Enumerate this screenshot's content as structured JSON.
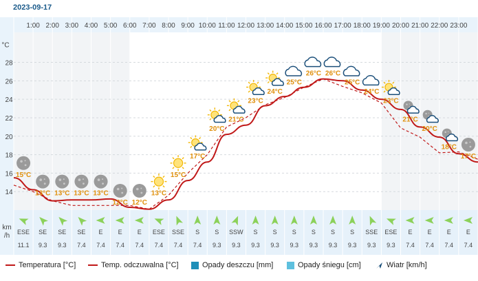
{
  "date": "2023-09-17",
  "units": {
    "temp_axis": "°C",
    "wind_axis_top": "km",
    "wind_axis_bottom": "/h"
  },
  "legend": {
    "temperature": "Temperatura [°C]",
    "feels_like": "Temp. odczuwalna [°C]",
    "rain": "Opady deszczu [mm]",
    "snow": "Opady śniegu [cm]",
    "wind": "Wiatr [km/h]"
  },
  "colors": {
    "temperature": "#c01818",
    "feels_like": "#c01818",
    "rain": "#1f8fb8",
    "snow": "#5ec0de",
    "wind_arrow": "#8cd15a",
    "temp_label": "#e0900c"
  },
  "chart_data": {
    "type": "line",
    "ylabel": "°C",
    "yticks": [
      14,
      16,
      18,
      20,
      22,
      24,
      26,
      28
    ],
    "ylim": [
      12,
      30.5
    ],
    "xticks": [
      "1:00",
      "2:00",
      "3:00",
      "4:00",
      "5:00",
      "6:00",
      "7:00",
      "8:00",
      "9:00",
      "10:00",
      "11:00",
      "12:00",
      "13:00",
      "14:00",
      "15:00",
      "16:00",
      "17:00",
      "18:00",
      "19:00",
      "20:00",
      "21:00",
      "22:00",
      "23:00"
    ],
    "hours": [
      0,
      1,
      2,
      3,
      4,
      5,
      6,
      7,
      8,
      9,
      10,
      11,
      12,
      13,
      14,
      15,
      16,
      17,
      18,
      19,
      20,
      21,
      22,
      23,
      24
    ],
    "series": [
      {
        "name": "Temperatura [°C]",
        "values": [
          15.5,
          14.2,
          13.0,
          13.1,
          13.1,
          13.2,
          12.3,
          12.1,
          13.1,
          15.2,
          17.2,
          20.2,
          21.2,
          23.3,
          24.3,
          25.3,
          26.2,
          26.0,
          25.0,
          24.0,
          22.9,
          21.0,
          19.9,
          18.1,
          17.2
        ]
      },
      {
        "name": "Temp. odczuwalna [°C]",
        "values": [
          14.7,
          14.0,
          13.0,
          12.5,
          12.5,
          12.5,
          12.5,
          12.1,
          13.6,
          16.0,
          18.0,
          21.0,
          22.0,
          23.4,
          24.2,
          25.3,
          26.2,
          25.4,
          24.7,
          23.6,
          20.9,
          19.9,
          18.2,
          18.3,
          17.5
        ]
      }
    ],
    "hourly_labels": [
      "15°C",
      "13°C",
      "13°C",
      "13°C",
      "13°C",
      "12°C",
      "12°C",
      "13°C",
      "15°C",
      "17°C",
      "20°C",
      "21°C",
      "23°C",
      "24°C",
      "25°C",
      "26°C",
      "26°C",
      "25°C",
      "24°C",
      "23°C",
      "21°C",
      "20°C",
      "18°C",
      "17°C"
    ],
    "hourly_temps": [
      15,
      13,
      13,
      13,
      13,
      12,
      12,
      13,
      15,
      17,
      20,
      21,
      23,
      24,
      25,
      26,
      26,
      25,
      24,
      23,
      21,
      20,
      18,
      17
    ],
    "icons": [
      "moon-icon",
      "moon-icon",
      "moon-icon",
      "moon-icon",
      "moon-icon",
      "moon-icon",
      "moon-icon",
      "sun-icon",
      "sun-icon",
      "sun-cloud-icon",
      "sun-cloud-icon",
      "sun-cloud-icon",
      "sun-cloud-icon",
      "sun-cloud-icon",
      "cloud-icon",
      "cloud-icon",
      "cloud-icon",
      "cloud-icon",
      "cloud-icon",
      "sun-cloud-icon",
      "moon-cloud-icon",
      "moon-cloud-icon",
      "moon-cloud-icon",
      "moon-icon"
    ],
    "wind_dirs": [
      "ESE",
      "SE",
      "SE",
      "SE",
      "E",
      "E",
      "E",
      "ESE",
      "SSE",
      "S",
      "S",
      "SSW",
      "S",
      "S",
      "S",
      "S",
      "S",
      "S",
      "SSE",
      "ESE",
      "E",
      "E",
      "E",
      "E"
    ],
    "wind_speeds": [
      "11.1",
      "9.3",
      "9.3",
      "7.4",
      "7.4",
      "7.4",
      "7.4",
      "7.4",
      "7.4",
      "7.4",
      "9.3",
      "9.3",
      "9.3",
      "9.3",
      "9.3",
      "9.3",
      "9.3",
      "9.3",
      "9.3",
      "9.3",
      "7.4",
      "7.4",
      "7.4",
      "7.4"
    ]
  }
}
